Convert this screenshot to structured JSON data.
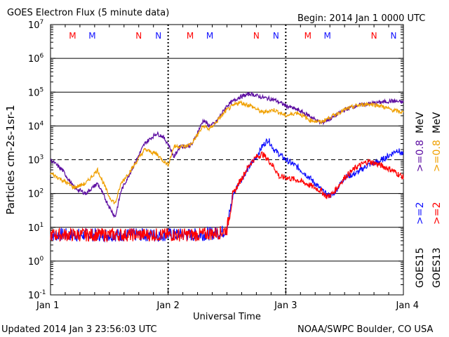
{
  "header": {
    "title": "GOES Electron Flux (5 minute data)",
    "begin": "Begin: 2014 Jan 1 0000 UTC"
  },
  "footer": {
    "updated": "Updated 2014 Jan  3 23:56:03 UTC",
    "credit": "NOAA/SWPC Boulder, CO USA"
  },
  "colors": {
    "goes15_2mev": "#1010ff",
    "goes13_2mev": "#ff0000",
    "goes15_08mev": "#5a0aa0",
    "goes13_08mev": "#f0a000",
    "threshold": "#000000"
  },
  "chart_data": {
    "type": "line",
    "title": "GOES Electron Flux (5 minute data)",
    "xlabel": "Universal Time",
    "ylabel": "Particles cm-2s-1sr-1",
    "y_scale": "log",
    "ylim": [
      0.1,
      10000000
    ],
    "xlim": [
      0,
      3
    ],
    "x_tick_labels": [
      "Jan 1",
      "Jan 2",
      "Jan 3",
      "Jan 4"
    ],
    "y_tick_exponents": [
      -1,
      0,
      1,
      2,
      3,
      4,
      5,
      6,
      7
    ],
    "threshold_level": 1000,
    "grid": "horizontal decades",
    "day_markers": {
      "Jan 1": [
        "M",
        "M",
        "N",
        "N"
      ],
      "Jan 2": [
        "M",
        "M",
        "N",
        "N"
      ],
      "Jan 3": [
        "M",
        "M",
        "N",
        "N"
      ]
    },
    "legend": {
      "goes15": "GOES15",
      "goes13": "GOES13",
      "ge2_blue": ">=2",
      "ge2_red": ">=2",
      "ge08_purple": ">=0.8",
      "ge08_orange": ">=0.8",
      "unit": "MeV"
    },
    "series": [
      {
        "name": "GOES15 >=2 MeV",
        "color": "#1010ff",
        "x": [
          0,
          0.25,
          0.5,
          0.75,
          1.0,
          1.25,
          1.45,
          1.5,
          1.55,
          1.6,
          1.7,
          1.75,
          1.8,
          1.85,
          1.9,
          2.0,
          2.1,
          2.2,
          2.3,
          2.35,
          2.4,
          2.5,
          2.6,
          2.7,
          2.8,
          2.9,
          2.95,
          3.0
        ],
        "values": [
          6,
          6,
          6,
          6,
          6,
          6,
          7,
          9,
          90,
          200,
          700,
          1200,
          2500,
          4000,
          2000,
          1000,
          600,
          300,
          130,
          90,
          90,
          300,
          400,
          700,
          900,
          1500,
          2000,
          1300
        ]
      },
      {
        "name": "GOES13 >=2 MeV",
        "color": "#ff0000",
        "x": [
          0,
          0.25,
          0.5,
          0.75,
          1.0,
          1.25,
          1.45,
          1.5,
          1.55,
          1.6,
          1.7,
          1.75,
          1.8,
          1.85,
          1.9,
          1.95,
          2.0,
          2.1,
          2.2,
          2.3,
          2.35,
          2.4,
          2.5,
          2.6,
          2.7,
          2.8,
          2.9,
          3.0
        ],
        "values": [
          6,
          6,
          6,
          6,
          6,
          6,
          7,
          9,
          90,
          200,
          800,
          1200,
          1500,
          1000,
          600,
          300,
          300,
          250,
          180,
          120,
          80,
          100,
          300,
          600,
          900,
          700,
          500,
          300
        ]
      },
      {
        "name": "GOES15 >=0.8 MeV",
        "color": "#5a0aa0",
        "x": [
          0,
          0.1,
          0.2,
          0.3,
          0.4,
          0.5,
          0.55,
          0.6,
          0.7,
          0.8,
          0.9,
          0.95,
          1.0,
          1.05,
          1.1,
          1.15,
          1.2,
          1.3,
          1.35,
          1.4,
          1.5,
          1.6,
          1.7,
          1.8,
          1.9,
          2.0,
          2.1,
          2.2,
          2.3,
          2.4,
          2.5,
          2.6,
          2.7,
          2.8,
          2.9,
          3.0
        ],
        "values": [
          1000,
          500,
          150,
          100,
          200,
          40,
          20,
          120,
          600,
          3000,
          6000,
          5000,
          3000,
          1200,
          2500,
          2500,
          2700,
          15000,
          10000,
          12000,
          40000,
          70000,
          90000,
          70000,
          60000,
          40000,
          30000,
          20000,
          12000,
          18000,
          30000,
          40000,
          45000,
          50000,
          55000,
          50000
        ]
      },
      {
        "name": "GOES13 >=0.8 MeV",
        "color": "#f0a000",
        "x": [
          0,
          0.1,
          0.2,
          0.3,
          0.4,
          0.5,
          0.55,
          0.6,
          0.7,
          0.8,
          0.9,
          0.95,
          1.0,
          1.05,
          1.1,
          1.15,
          1.2,
          1.3,
          1.35,
          1.4,
          1.5,
          1.6,
          1.7,
          1.8,
          1.9,
          2.0,
          2.1,
          2.2,
          2.3,
          2.4,
          2.5,
          2.6,
          2.7,
          2.8,
          2.9,
          3.0
        ],
        "values": [
          400,
          250,
          150,
          200,
          500,
          80,
          50,
          200,
          600,
          2000,
          1500,
          1000,
          700,
          2500,
          2500,
          2500,
          3000,
          10000,
          8000,
          12000,
          30000,
          50000,
          40000,
          25000,
          30000,
          20000,
          25000,
          15000,
          13000,
          20000,
          30000,
          40000,
          45000,
          40000,
          30000,
          25000
        ]
      }
    ]
  }
}
